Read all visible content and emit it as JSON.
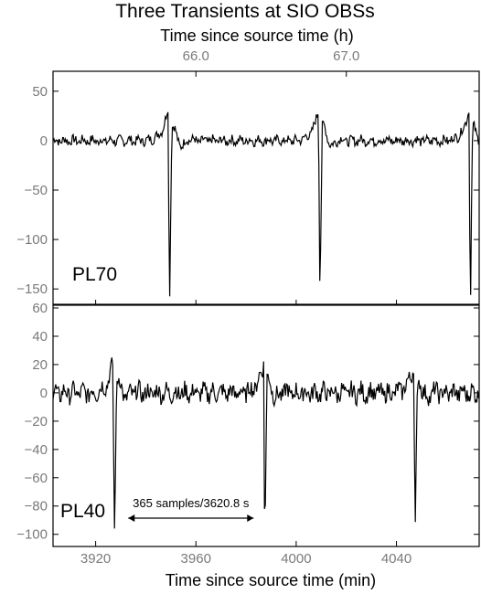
{
  "chart_data": {
    "type": "line",
    "title": "Three Transients at SIO OBSs",
    "top_xlabel": "Time since source time (h)",
    "top_ticks": [
      "66.0",
      "67.0"
    ],
    "xlabel": "Time since source time (min)",
    "xlim": [
      3903,
      4073
    ],
    "x_ticks": [
      3920,
      3960,
      4000,
      4040
    ],
    "panels": [
      {
        "station": "PL70",
        "ylim": [
          -160,
          60
        ],
        "y_ticks": [
          50,
          0,
          -50,
          -100,
          -150
        ],
        "transient_x": [
          3949,
          4009,
          4069
        ],
        "peak_min": -157
      },
      {
        "station": "PL40",
        "ylim": [
          -106,
          60
        ],
        "y_ticks": [
          60,
          40,
          20,
          0,
          -20,
          -40,
          -60,
          -80,
          -100
        ],
        "transient_x": [
          3927,
          3987,
          4047
        ],
        "peak_min": -100
      }
    ],
    "annotation": "365 samples/3620.8 s",
    "annotation_span": [
      3933,
      3983
    ]
  }
}
